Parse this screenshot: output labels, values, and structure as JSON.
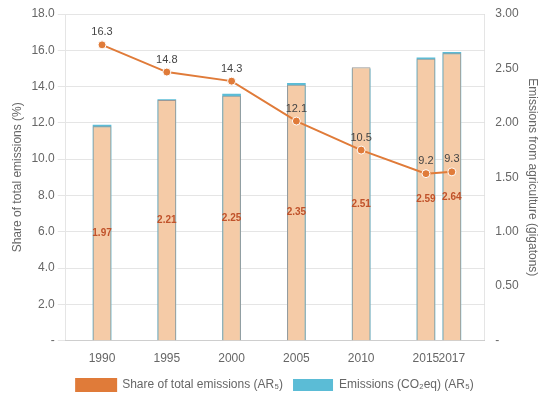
{
  "chart_data": {
    "type": "bar",
    "x": [
      1990,
      1995,
      2000,
      2005,
      2010,
      2015,
      2017
    ],
    "xlim": [
      1987.2,
      2019.5
    ],
    "xticks": [
      1990,
      1995,
      2000,
      2005,
      2010,
      2015,
      2017
    ],
    "ylabel": "Share of total emissions (%)",
    "y2label": "Emissions from agriculture (gigatons)",
    "ylim": [
      0,
      18.0
    ],
    "yticks": [
      {
        "value": 0,
        "label": "-"
      },
      {
        "value": 2.0,
        "label": "2.0"
      },
      {
        "value": 4.0,
        "label": "4.0"
      },
      {
        "value": 6.0,
        "label": "6.0"
      },
      {
        "value": 8.0,
        "label": "8.0"
      },
      {
        "value": 10.0,
        "label": "10.0"
      },
      {
        "value": 12.0,
        "label": "12.0"
      },
      {
        "value": 14.0,
        "label": "14.0"
      },
      {
        "value": 16.0,
        "label": "16.0"
      },
      {
        "value": 18.0,
        "label": "18.0"
      }
    ],
    "y2lim": [
      0,
      3.0
    ],
    "y2ticks": [
      {
        "value": 0,
        "label": "-"
      },
      {
        "value": 0.5,
        "label": "0.50"
      },
      {
        "value": 1.0,
        "label": "1.00"
      },
      {
        "value": 1.5,
        "label": "1.50"
      },
      {
        "value": 2.0,
        "label": "2.00"
      },
      {
        "value": 2.5,
        "label": "2.50"
      },
      {
        "value": 3.0,
        "label": "3.00"
      }
    ],
    "grid": true,
    "legend": "bottom",
    "series": [
      {
        "name": "Emissions (CO₂eq) (AR₅)",
        "type": "bar",
        "color": "#5bbcd6",
        "values": [
          11.9,
          13.3,
          13.6,
          14.2,
          15.0,
          15.6,
          15.9
        ]
      },
      {
        "type": "bar",
        "axis": "y2",
        "color": "#f5cba7",
        "values": [
          1.97,
          2.21,
          2.25,
          2.35,
          2.51,
          2.59,
          2.64
        ],
        "data_labels": true
      },
      {
        "name": "Share of total emissions (AR₅)",
        "type": "line",
        "color": "#e07b39",
        "marker": "circle",
        "values": [
          16.3,
          14.8,
          14.3,
          12.1,
          10.5,
          9.2,
          9.3
        ],
        "data_labels": true
      }
    ]
  }
}
